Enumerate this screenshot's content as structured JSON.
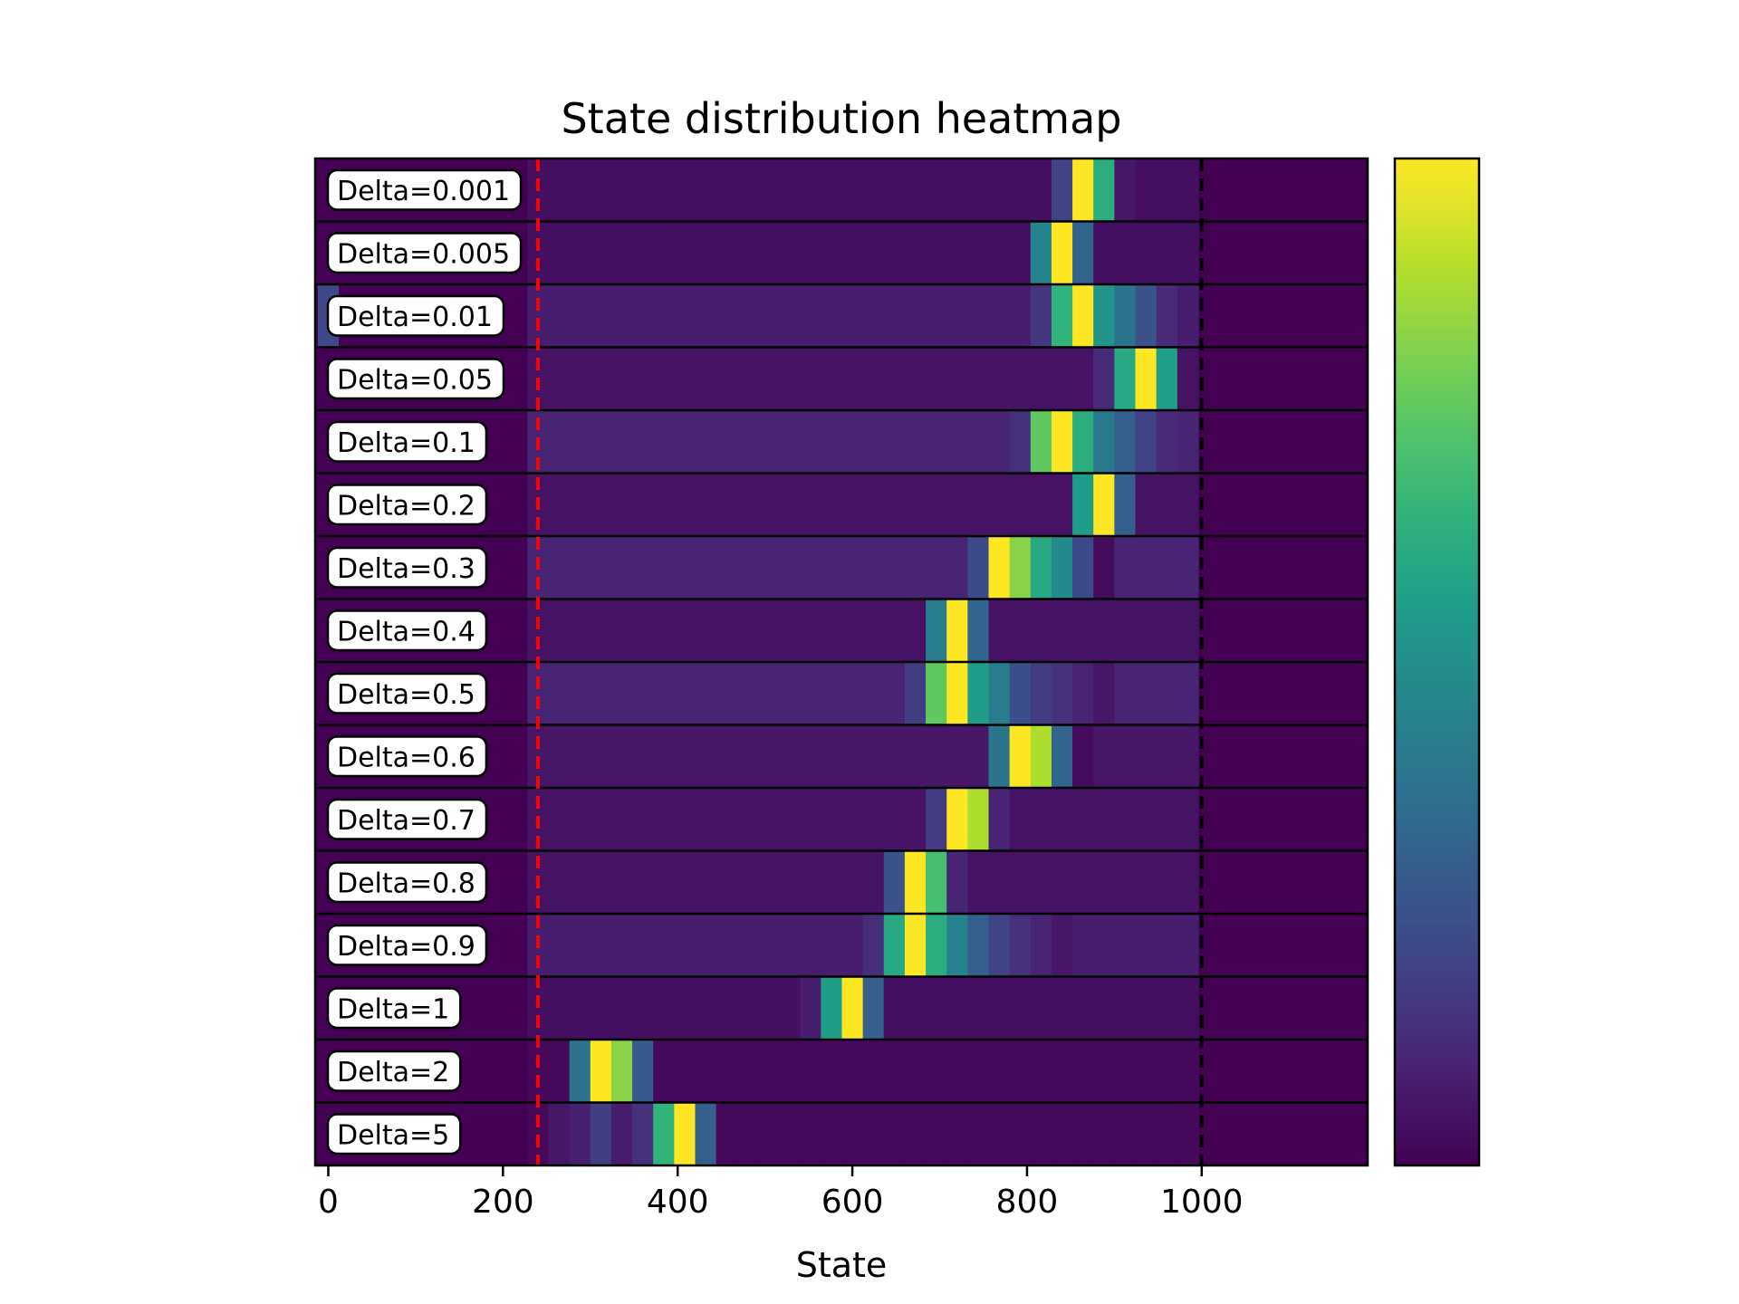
{
  "chart_data": {
    "type": "heatmap",
    "title": "State distribution heatmap",
    "xlabel": "State",
    "ylabel": "",
    "xlim": [
      -15,
      1190
    ],
    "x_ticks": [
      0,
      200,
      400,
      600,
      800,
      1000
    ],
    "bin_width": 24,
    "grid": false,
    "colormap": "viridis",
    "colorbar": {
      "ticks": []
    },
    "reference_lines": [
      {
        "x": 240,
        "color": "#ff0000",
        "style": "dashed"
      },
      {
        "x": 1000,
        "color": "#000000",
        "style": "dashed"
      }
    ],
    "rows": [
      {
        "label": "Delta=0.001",
        "base": 0.04,
        "peaks": [
          [
            840,
            0.2
          ],
          [
            864,
            1.0
          ],
          [
            888,
            0.62
          ],
          [
            912,
            0.06
          ]
        ]
      },
      {
        "label": "Delta=0.005",
        "base": 0.04,
        "peaks": [
          [
            816,
            0.45
          ],
          [
            840,
            1.0
          ],
          [
            864,
            0.32
          ]
        ]
      },
      {
        "label": "Delta=0.01",
        "base": 0.08,
        "peaks": [
          [
            0,
            0.22
          ],
          [
            816,
            0.16
          ],
          [
            840,
            0.65
          ],
          [
            864,
            1.0
          ],
          [
            888,
            0.52
          ],
          [
            912,
            0.38
          ],
          [
            936,
            0.25
          ],
          [
            960,
            0.12
          ]
        ]
      },
      {
        "label": "Delta=0.05",
        "base": 0.05,
        "peaks": [
          [
            888,
            0.12
          ],
          [
            912,
            0.6
          ],
          [
            936,
            1.0
          ],
          [
            960,
            0.56
          ],
          [
            984,
            0.05
          ]
        ]
      },
      {
        "label": "Delta=0.1",
        "base": 0.1,
        "peaks": [
          [
            792,
            0.14
          ],
          [
            816,
            0.75
          ],
          [
            840,
            1.0
          ],
          [
            864,
            0.62
          ],
          [
            888,
            0.4
          ],
          [
            912,
            0.3
          ],
          [
            936,
            0.2
          ],
          [
            960,
            0.12
          ]
        ]
      },
      {
        "label": "Delta=0.2",
        "base": 0.05,
        "peaks": [
          [
            864,
            0.55
          ],
          [
            888,
            1.0
          ],
          [
            912,
            0.3
          ]
        ]
      },
      {
        "label": "Delta=0.3",
        "base": 0.1,
        "peaks": [
          [
            744,
            0.22
          ],
          [
            768,
            1.0
          ],
          [
            792,
            0.82
          ],
          [
            816,
            0.6
          ],
          [
            840,
            0.48
          ],
          [
            864,
            0.22
          ],
          [
            888,
            0.03
          ]
        ]
      },
      {
        "label": "Delta=0.4",
        "base": 0.05,
        "peaks": [
          [
            696,
            0.42
          ],
          [
            720,
            1.0
          ],
          [
            744,
            0.32
          ]
        ]
      },
      {
        "label": "Delta=0.5",
        "base": 0.1,
        "peaks": [
          [
            672,
            0.18
          ],
          [
            696,
            0.75
          ],
          [
            720,
            1.0
          ],
          [
            744,
            0.55
          ],
          [
            768,
            0.42
          ],
          [
            792,
            0.24
          ],
          [
            816,
            0.18
          ],
          [
            840,
            0.14
          ],
          [
            864,
            0.1
          ],
          [
            888,
            0.06
          ]
        ]
      },
      {
        "label": "Delta=0.6",
        "base": 0.06,
        "peaks": [
          [
            768,
            0.38
          ],
          [
            792,
            1.0
          ],
          [
            816,
            0.88
          ],
          [
            840,
            0.32
          ],
          [
            864,
            0.03
          ]
        ]
      },
      {
        "label": "Delta=0.7",
        "base": 0.05,
        "peaks": [
          [
            696,
            0.17
          ],
          [
            720,
            1.0
          ],
          [
            744,
            0.88
          ],
          [
            768,
            0.1
          ]
        ]
      },
      {
        "label": "Delta=0.8",
        "base": 0.05,
        "peaks": [
          [
            648,
            0.26
          ],
          [
            672,
            1.0
          ],
          [
            696,
            0.7
          ],
          [
            720,
            0.1
          ]
        ]
      },
      {
        "label": "Delta=0.9",
        "base": 0.08,
        "peaks": [
          [
            624,
            0.13
          ],
          [
            648,
            0.6
          ],
          [
            672,
            1.0
          ],
          [
            696,
            0.62
          ],
          [
            720,
            0.45
          ],
          [
            744,
            0.3
          ],
          [
            768,
            0.2
          ],
          [
            792,
            0.14
          ],
          [
            816,
            0.1
          ],
          [
            840,
            0.06
          ]
        ]
      },
      {
        "label": "Delta=1",
        "base": 0.04,
        "peaks": [
          [
            552,
            0.08
          ],
          [
            576,
            0.55
          ],
          [
            600,
            1.0
          ],
          [
            624,
            0.3
          ]
        ]
      },
      {
        "label": "Delta=2",
        "base": 0.02,
        "peaks": [
          [
            288,
            0.38
          ],
          [
            312,
            1.0
          ],
          [
            336,
            0.82
          ],
          [
            360,
            0.28
          ]
        ]
      },
      {
        "label": "Delta=5",
        "base": 0.02,
        "peaks": [
          [
            264,
            0.06
          ],
          [
            288,
            0.09
          ],
          [
            312,
            0.18
          ],
          [
            336,
            0.08
          ],
          [
            360,
            0.14
          ],
          [
            384,
            0.65
          ],
          [
            408,
            1.0
          ],
          [
            432,
            0.3
          ]
        ]
      }
    ]
  }
}
